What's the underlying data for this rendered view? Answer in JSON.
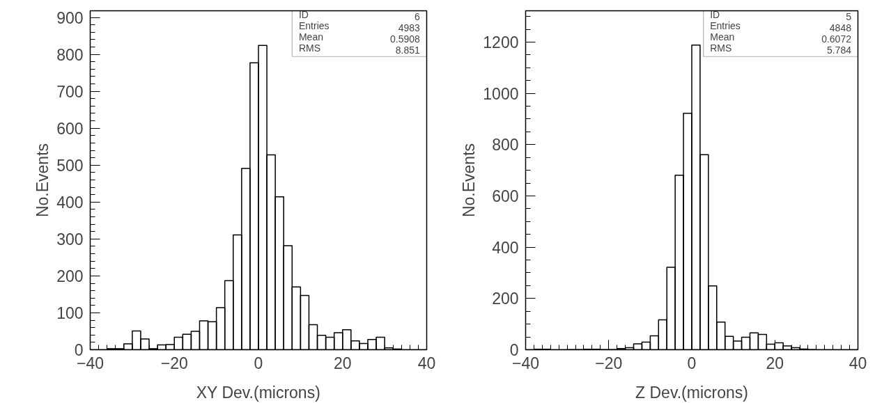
{
  "chart_data": [
    {
      "type": "histogram",
      "xlabel": "XY Dev.(microns)",
      "ylabel": "No.Events",
      "color": "#000000",
      "bins": [
        -40,
        -38,
        -36,
        -34,
        -32,
        -30,
        -28,
        -26,
        -24,
        -22,
        -20,
        -18,
        -16,
        -14,
        -12,
        -10,
        -8,
        -6,
        -4,
        -2,
        0,
        2,
        4,
        6,
        8,
        10,
        12,
        14,
        16,
        18,
        20,
        22,
        24,
        26,
        28,
        30,
        32,
        34,
        36,
        38,
        40
      ],
      "values": [
        0,
        0,
        3,
        3,
        16,
        51,
        29,
        3,
        13,
        14,
        34,
        42,
        50,
        78,
        76,
        114,
        187,
        311,
        491,
        777,
        824,
        528,
        414,
        282,
        170,
        147,
        68,
        39,
        34,
        46,
        54,
        24,
        17,
        28,
        34,
        5,
        2,
        0,
        0,
        0
      ],
      "xlim": [
        -40,
        40
      ],
      "xticks": [
        -40,
        -20,
        0,
        20,
        40
      ],
      "ylim": [
        0,
        918
      ],
      "yticks": [
        0,
        100,
        200,
        300,
        400,
        500,
        600,
        700,
        800,
        900
      ],
      "grid": false,
      "annotations": [
        "ID",
        "6",
        "Entries",
        "4983",
        "Mean",
        "0.5908",
        "RMS",
        "8.851"
      ]
    },
    {
      "type": "histogram",
      "xlabel": "Z Dev.(microns)",
      "ylabel": "No.Events",
      "color": "#000000",
      "bins": [
        -40,
        -38,
        -36,
        -34,
        -32,
        -30,
        -28,
        -26,
        -24,
        -22,
        -20,
        -18,
        -16,
        -14,
        -12,
        -10,
        -8,
        -6,
        -4,
        -2,
        0,
        2,
        4,
        6,
        8,
        10,
        12,
        14,
        16,
        18,
        20,
        22,
        24,
        26,
        28,
        30,
        32,
        34,
        36,
        38,
        40
      ],
      "values": [
        0,
        2,
        2,
        0,
        0,
        1,
        1,
        2,
        2,
        1,
        1,
        5,
        8,
        23,
        30,
        54,
        117,
        322,
        681,
        922,
        1188,
        761,
        249,
        108,
        52,
        34,
        49,
        66,
        60,
        22,
        27,
        15,
        8,
        3,
        1,
        0,
        0,
        0,
        0,
        0
      ],
      "xlim": [
        -40,
        40
      ],
      "xticks": [
        -40,
        -20,
        0,
        20,
        40
      ],
      "ylim": [
        0,
        1322
      ],
      "yticks": [
        0,
        200,
        400,
        600,
        800,
        1000,
        1200
      ],
      "grid": false,
      "annotations": [
        "ID",
        "5",
        "Entries",
        "4848",
        "Mean",
        "0.6072",
        "RMS",
        "5.784"
      ]
    }
  ]
}
